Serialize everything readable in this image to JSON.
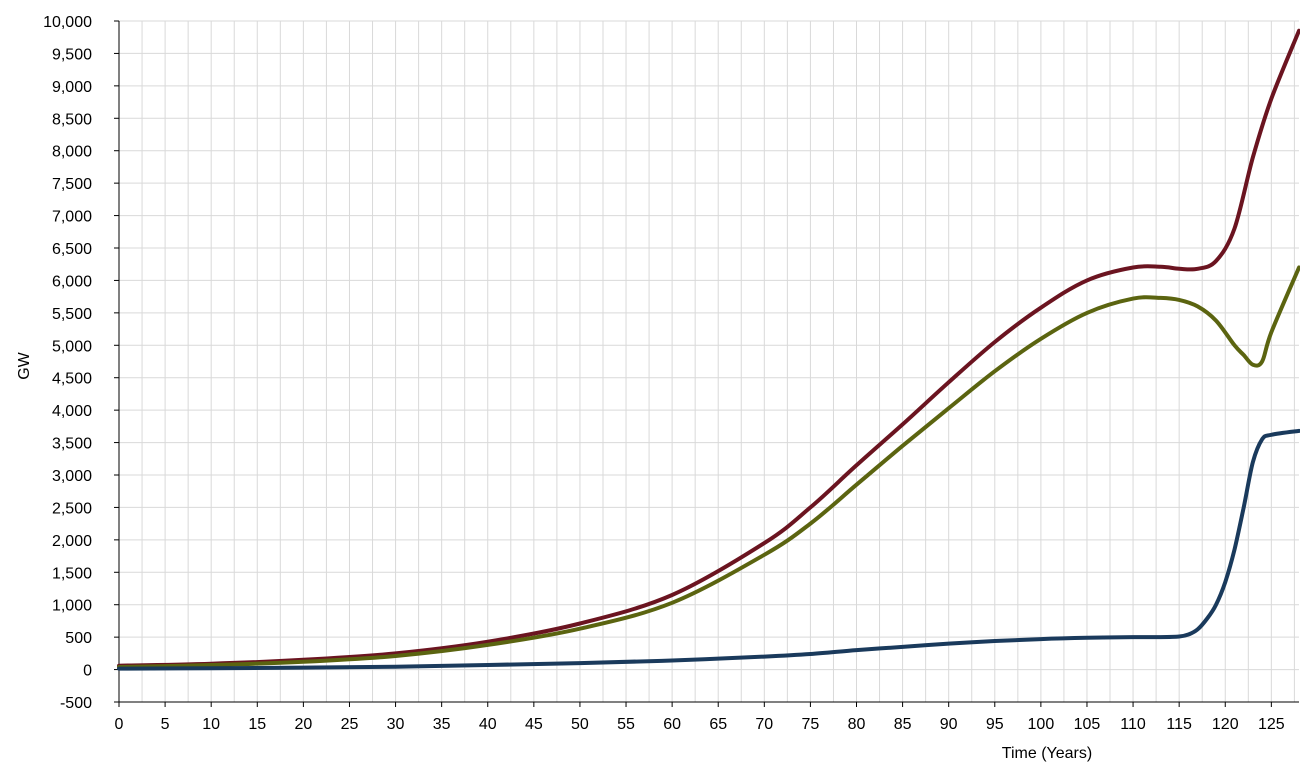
{
  "chart_data": {
    "type": "line",
    "title": "",
    "xlabel": "Time (Years)",
    "ylabel": "GW",
    "xlim": [
      0,
      128
    ],
    "ylim": [
      -500,
      10000
    ],
    "x_ticks": [
      0,
      5,
      10,
      15,
      20,
      25,
      30,
      35,
      40,
      45,
      50,
      55,
      60,
      65,
      70,
      75,
      80,
      85,
      90,
      95,
      100,
      105,
      110,
      115,
      120,
      125
    ],
    "y_ticks": [
      -500,
      0,
      500,
      1000,
      1500,
      2000,
      2500,
      3000,
      3500,
      4000,
      4500,
      5000,
      5500,
      6000,
      6500,
      7000,
      7500,
      8000,
      8500,
      9000,
      9500,
      10000
    ],
    "x_tick_labels": [
      "0",
      "5",
      "10",
      "15",
      "20",
      "25",
      "30",
      "35",
      "40",
      "45",
      "50",
      "55",
      "60",
      "65",
      "70",
      "75",
      "80",
      "85",
      "90",
      "95",
      "100",
      "105",
      "110",
      "115",
      "120",
      "125"
    ],
    "y_tick_labels": [
      "-500",
      "0",
      "500",
      "1,000",
      "1,500",
      "2,000",
      "2,500",
      "3,000",
      "3,500",
      "4,000",
      "4,500",
      "5,000",
      "5,500",
      "6,000",
      "6,500",
      "7,000",
      "7,500",
      "8,000",
      "8,500",
      "9,000",
      "9,500",
      "10,000"
    ],
    "grid": true,
    "legend": "none",
    "series": [
      {
        "color": "#6b1420",
        "x": [
          0,
          10,
          20,
          30,
          40,
          50,
          60,
          70,
          75,
          80,
          85,
          90,
          95,
          100,
          105,
          110,
          113,
          115,
          117,
          119,
          121,
          123,
          125,
          128
        ],
        "y": [
          60,
          90,
          150,
          250,
          430,
          710,
          1150,
          1950,
          2500,
          3150,
          3780,
          4430,
          5050,
          5580,
          6000,
          6200,
          6210,
          6180,
          6180,
          6300,
          6800,
          7900,
          8800,
          9850
        ]
      },
      {
        "color": "#5b6410",
        "x": [
          0,
          10,
          20,
          30,
          40,
          50,
          60,
          70,
          75,
          80,
          85,
          90,
          95,
          100,
          105,
          110,
          113,
          115,
          117,
          119,
          121,
          122,
          123,
          124,
          125,
          128
        ],
        "y": [
          40,
          70,
          120,
          210,
          380,
          630,
          1030,
          1770,
          2250,
          2850,
          3450,
          4030,
          4600,
          5100,
          5500,
          5720,
          5730,
          5700,
          5600,
          5380,
          5000,
          4850,
          4700,
          4750,
          5200,
          6200
        ]
      },
      {
        "color": "#1a3a5c",
        "x": [
          0,
          10,
          20,
          30,
          40,
          50,
          60,
          70,
          75,
          80,
          85,
          90,
          95,
          100,
          105,
          110,
          113,
          115,
          116,
          117,
          118,
          119,
          120,
          121,
          122,
          123,
          124,
          125,
          128
        ],
        "y": [
          15,
          20,
          30,
          45,
          70,
          100,
          140,
          200,
          240,
          300,
          350,
          400,
          440,
          470,
          490,
          500,
          500,
          510,
          540,
          620,
          780,
          1000,
          1350,
          1850,
          2500,
          3200,
          3550,
          3620,
          3680
        ]
      }
    ]
  }
}
